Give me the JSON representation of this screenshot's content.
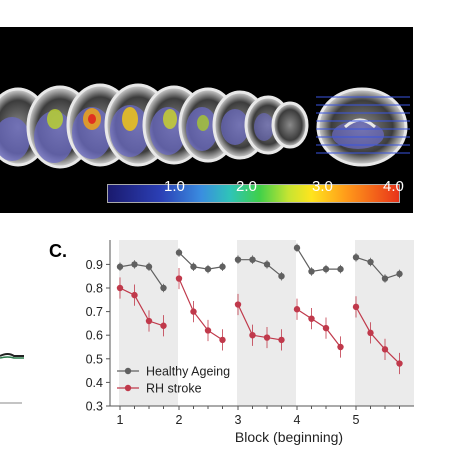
{
  "colorbar": {
    "ticks": [
      "1.0",
      "2.0",
      "3.0",
      "4.0"
    ]
  },
  "panel_c": {
    "label": "C."
  },
  "colors": {
    "healthy": "#606060",
    "stroke": "#c0394b",
    "shade": "#ebebeb"
  },
  "chart_data": {
    "type": "line",
    "xlabel": "Block (beginning)",
    "ylabel": "",
    "ylim": [
      0.3,
      1.0
    ],
    "yticks": [
      "0.3",
      "0.4",
      "0.5",
      "0.6",
      "0.7",
      "0.8",
      "0.9"
    ],
    "xticks": [
      "1",
      "2",
      "3",
      "4",
      "5"
    ],
    "grid": false,
    "legend_position": "bottom-left",
    "shaded_blocks": [
      1,
      3,
      5
    ],
    "series": [
      {
        "name": "Healthy Ageing",
        "blocks": [
          {
            "block": 1,
            "values": [
              0.89,
              0.9,
              0.89,
              0.8
            ]
          },
          {
            "block": 2,
            "values": [
              0.95,
              0.89,
              0.88,
              0.89
            ]
          },
          {
            "block": 3,
            "values": [
              0.92,
              0.92,
              0.9,
              0.85
            ]
          },
          {
            "block": 4,
            "values": [
              0.97,
              0.87,
              0.88,
              0.88
            ]
          },
          {
            "block": 5,
            "values": [
              0.93,
              0.91,
              0.84,
              0.86
            ]
          }
        ]
      },
      {
        "name": "RH stroke",
        "blocks": [
          {
            "block": 1,
            "values": [
              0.8,
              0.77,
              0.66,
              0.64
            ]
          },
          {
            "block": 2,
            "values": [
              0.84,
              0.7,
              0.62,
              0.58
            ]
          },
          {
            "block": 3,
            "values": [
              0.73,
              0.6,
              0.59,
              0.58
            ]
          },
          {
            "block": 4,
            "values": [
              0.71,
              0.67,
              0.63,
              0.55
            ]
          },
          {
            "block": 5,
            "values": [
              0.72,
              0.61,
              0.54,
              0.48
            ]
          }
        ]
      }
    ]
  }
}
